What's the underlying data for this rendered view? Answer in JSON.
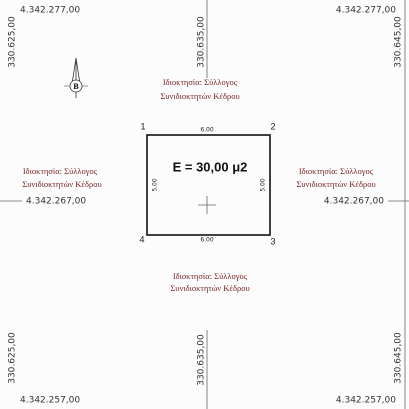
{
  "northings": [
    {
      "left": "4.342.277,00",
      "right": "4.342.277,00"
    },
    {
      "left": "4.342.267,00",
      "right": "4.342.267,00"
    },
    {
      "left": "4.342.257,00",
      "right": "4.342.257,00"
    }
  ],
  "eastings": [
    {
      "top": "330.625,00",
      "bottom": "330.625,00"
    },
    {
      "top": "330.635,00",
      "bottom": "330.635,00"
    },
    {
      "top": "330.645,00",
      "bottom": "330.645,00"
    }
  ],
  "owners": [
    {
      "line1": "Ιδιοκτησία: Σύλλογος",
      "line2": "Συνιδιοκτητών Κέδρου"
    },
    {
      "line1": "Ιδιοκτησία: Σύλλογος",
      "line2": "Συνιδιοκτητών Κέδρου"
    },
    {
      "line1": "Ιδιοκτησία: Σύλλογος",
      "line2": "Συνιδιοκτητών Κέδρου"
    },
    {
      "line1": "Ιδιοκτησία: Σύλλογος",
      "line2": "Συνιδιοκτητών Κέδρου"
    }
  ],
  "parcel": {
    "vertices": [
      "1",
      "2",
      "3",
      "4"
    ],
    "sides": [
      "6.00",
      "5.00",
      "6.00",
      "5.00"
    ],
    "area": "E = 30,00 μ2"
  },
  "north_arrow": "B"
}
